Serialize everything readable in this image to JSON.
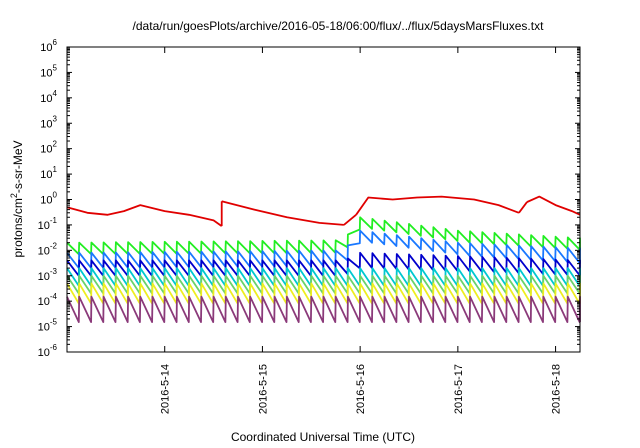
{
  "chart_data": {
    "type": "line",
    "title": "/data/run/goesPlots/archive/2016-05-18/06:00/flux/../flux/5daysMarsFluxes.txt",
    "xlabel": "Coordinated Universal Time (UTC)",
    "ylabel_parts": {
      "base": "protons/cm",
      "sup": "2",
      "rest": "-s-sr-MeV"
    },
    "yscale": "log",
    "ylim": [
      1e-06,
      1000000.0
    ],
    "y_ticks": [
      {
        "mantissa": "10",
        "exp": "-6",
        "value": -6
      },
      {
        "mantissa": "10",
        "exp": "-5",
        "value": -5
      },
      {
        "mantissa": "10",
        "exp": "-4",
        "value": -4
      },
      {
        "mantissa": "10",
        "exp": "-3",
        "value": -3
      },
      {
        "mantissa": "10",
        "exp": "-2",
        "value": -2
      },
      {
        "mantissa": "10",
        "exp": "-1",
        "value": -1
      },
      {
        "mantissa": "10",
        "exp": "0",
        "value": 0
      },
      {
        "mantissa": "10",
        "exp": "1",
        "value": 1
      },
      {
        "mantissa": "10",
        "exp": "2",
        "value": 2
      },
      {
        "mantissa": "10",
        "exp": "3",
        "value": 3
      },
      {
        "mantissa": "10",
        "exp": "4",
        "value": 4
      },
      {
        "mantissa": "10",
        "exp": "5",
        "value": 5
      },
      {
        "mantissa": "10",
        "exp": "6",
        "value": 6
      }
    ],
    "xlim": [
      "2016-05-13 00:00",
      "2016-05-18 06:00"
    ],
    "x_ticks": [
      {
        "label": "2016-5-14",
        "value": "2016-05-14"
      },
      {
        "label": "2016-5-15",
        "value": "2016-05-15"
      },
      {
        "label": "2016-5-16",
        "value": "2016-05-16"
      },
      {
        "label": "2016-5-17",
        "value": "2016-05-17"
      },
      {
        "label": "2016-5-18",
        "value": "2016-05-18"
      }
    ],
    "grid": false,
    "legend": "none",
    "sawtooth_period_hours": 3,
    "series": [
      {
        "color": "#e00000",
        "kind": "segments",
        "segments": [
          {
            "x": [
              "2016-05-13 00:00",
              "2016-05-13 05:00",
              "2016-05-13 10:00",
              "2016-05-13 14:00",
              "2016-05-13 18:00",
              "2016-05-14 00:00",
              "2016-05-14 06:00",
              "2016-05-14 12:00",
              "2016-05-14 14:00"
            ],
            "y": [
              0.5,
              0.3,
              0.25,
              0.35,
              0.6,
              0.35,
              0.25,
              0.15,
              0.09
            ]
          },
          {
            "x": [
              "2016-05-14 14:00",
              "2016-05-14 16:00",
              "2016-05-14 22:00",
              "2016-05-15 06:00",
              "2016-05-15 14:00",
              "2016-05-15 20:00"
            ],
            "y": [
              0.85,
              0.7,
              0.4,
              0.2,
              0.12,
              0.1
            ]
          },
          {
            "x": [
              "2016-05-15 23:00",
              "2016-05-16 02:00",
              "2016-05-16 08:00",
              "2016-05-16 14:00",
              "2016-05-16 20:00",
              "2016-05-17 04:00",
              "2016-05-17 10:00",
              "2016-05-17 15:00"
            ],
            "y": [
              0.25,
              1.2,
              1.0,
              1.2,
              1.3,
              1.0,
              0.6,
              0.3
            ]
          },
          {
            "x": [
              "2016-05-17 17:00",
              "2016-05-17 20:00",
              "2016-05-18 00:00",
              "2016-05-18 04:00",
              "2016-05-18 06:00"
            ],
            "y": [
              0.8,
              1.3,
              0.6,
              0.35,
              0.25
            ]
          }
        ]
      },
      {
        "color": "#22ee22",
        "kind": "sawtooth",
        "x": [
          "2016-05-13 00:00",
          "2016-05-15 20:00",
          "2016-05-16 00:00",
          "2016-05-17 00:00",
          "2016-05-18 06:00"
        ],
        "peak": [
          0.02,
          0.025,
          0.2,
          0.06,
          0.03
        ],
        "trough": [
          0.007,
          0.008,
          0.07,
          0.02,
          0.01
        ]
      },
      {
        "color": "#1a78ff",
        "kind": "sawtooth",
        "x": [
          "2016-05-13 00:00",
          "2016-05-15 20:00",
          "2016-05-16 00:00",
          "2016-05-17 00:00",
          "2016-05-18 06:00"
        ],
        "peak": [
          0.008,
          0.01,
          0.06,
          0.02,
          0.012
        ],
        "trough": [
          0.002,
          0.0025,
          0.02,
          0.006,
          0.003
        ]
      },
      {
        "color": "#0000cc",
        "kind": "sawtooth",
        "x": [
          "2016-05-13 00:00",
          "2016-05-15 20:00",
          "2016-05-16 00:00",
          "2016-05-17 00:00",
          "2016-05-18 06:00"
        ],
        "peak": [
          0.004,
          0.004,
          0.008,
          0.006,
          0.004
        ],
        "trough": [
          0.001,
          0.001,
          0.002,
          0.0015,
          0.001
        ]
      },
      {
        "color": "#00c8d0",
        "kind": "sawtooth",
        "x": [
          "2016-05-13 00:00",
          "2016-05-18 06:00"
        ],
        "peak": [
          0.002,
          0.002
        ],
        "trough": [
          0.0004,
          0.0004
        ]
      },
      {
        "color": "#6ad36a",
        "kind": "sawtooth",
        "x": [
          "2016-05-13 00:00",
          "2016-05-18 06:00"
        ],
        "peak": [
          0.001,
          0.001
        ],
        "trough": [
          0.0002,
          0.0002
        ]
      },
      {
        "color": "#eeee20",
        "kind": "sawtooth",
        "x": [
          "2016-05-13 00:00",
          "2016-05-18 06:00"
        ],
        "peak": [
          0.0005,
          0.0005
        ],
        "trough": [
          8e-05,
          8e-05
        ]
      },
      {
        "color": "#8b3a7a",
        "kind": "sawtooth",
        "x": [
          "2016-05-13 00:00",
          "2016-05-18 06:00"
        ],
        "peak": [
          0.00015,
          0.00015
        ],
        "trough": [
          1.5e-05,
          1.5e-05
        ]
      }
    ]
  }
}
